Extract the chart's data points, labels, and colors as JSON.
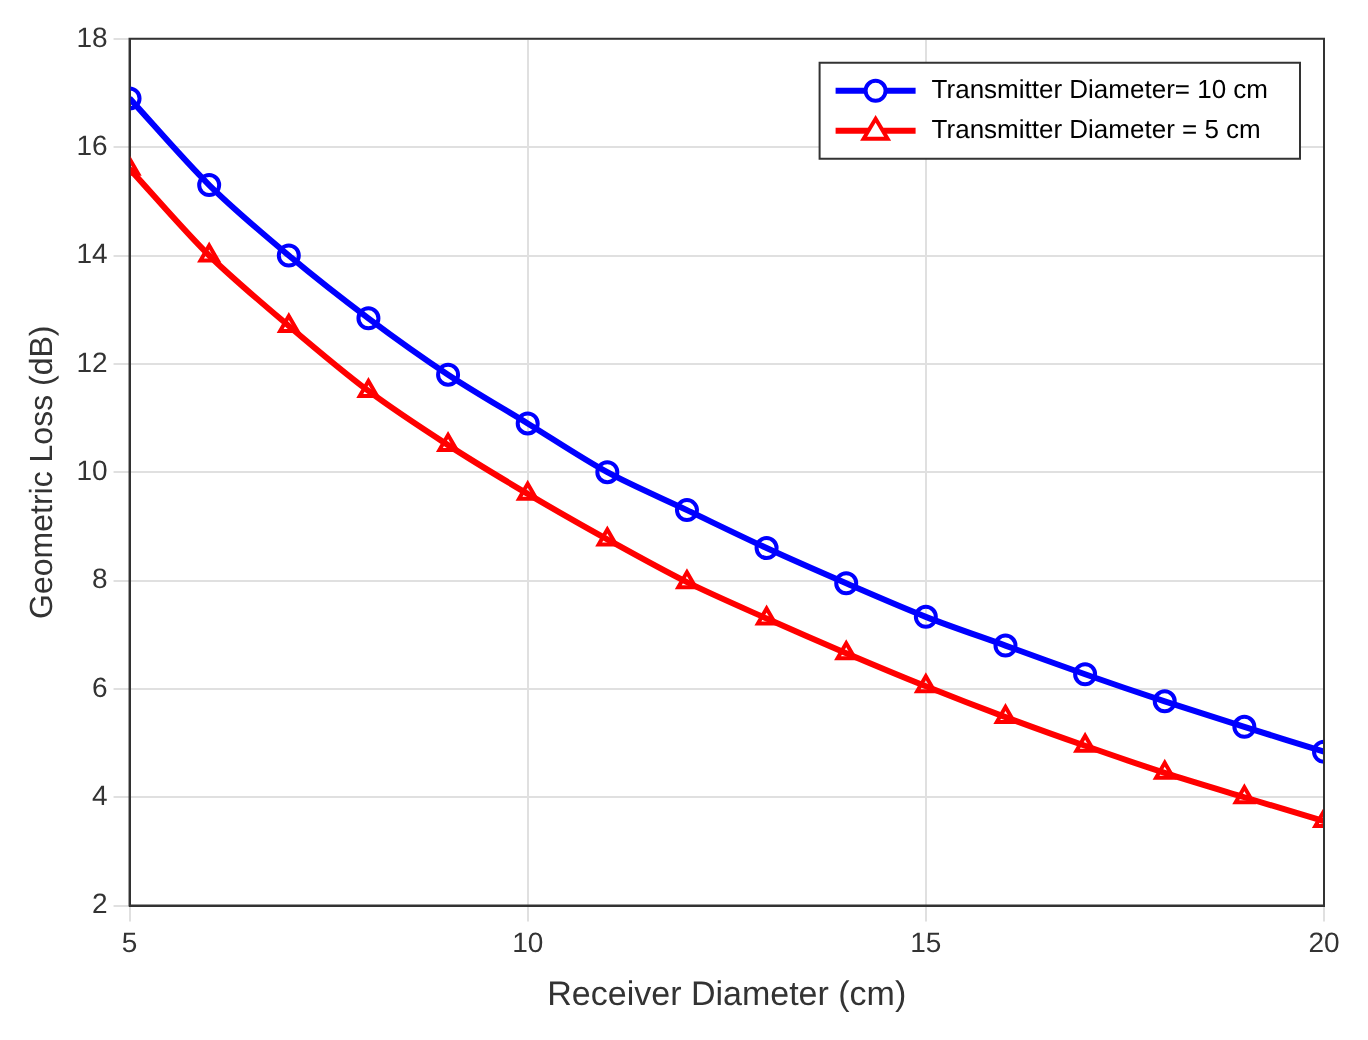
{
  "chart_data": {
    "type": "line",
    "xlabel": "Receiver Diameter (cm)",
    "ylabel": "Geometric Loss (dB)",
    "x": [
      5,
      6,
      7,
      8,
      9,
      10,
      11,
      12,
      13,
      14,
      15,
      16,
      17,
      18,
      19,
      20
    ],
    "series": [
      {
        "name": "Transmitter Diameter= 10 cm",
        "color": "#0000ff",
        "marker": "circle",
        "values": [
          16.9,
          15.3,
          14.0,
          12.84,
          11.8,
          10.9,
          10.0,
          9.3,
          8.6,
          7.95,
          7.33,
          6.8,
          6.27,
          5.77,
          5.3,
          4.84
        ]
      },
      {
        "name": "Transmitter Diameter = 5 cm",
        "color": "#ff0000",
        "marker": "triangle",
        "values": [
          15.6,
          14.0,
          12.7,
          11.5,
          10.5,
          9.6,
          8.76,
          7.97,
          7.3,
          6.66,
          6.05,
          5.48,
          4.95,
          4.45,
          4.0,
          3.56
        ]
      }
    ],
    "xlim": [
      5,
      20
    ],
    "xticks": [
      5,
      10,
      15,
      20
    ],
    "ylim": [
      2,
      18
    ],
    "yticks": [
      2,
      4,
      6,
      8,
      10,
      12,
      14,
      16,
      18
    ],
    "grid": true,
    "legend": "top right",
    "line_style": "solid"
  }
}
